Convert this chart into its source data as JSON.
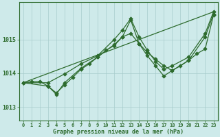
{
  "title": "Graphe pression niveau de la mer (hPa)",
  "bg_color": "#ceeaea",
  "grid_color": "#a8cccc",
  "line_color": "#2d6b2d",
  "xlim": [
    -0.5,
    23.5
  ],
  "ylim": [
    1012.6,
    1016.1
  ],
  "yticks": [
    1013,
    1014,
    1015
  ],
  "xticks": [
    0,
    1,
    2,
    3,
    4,
    5,
    6,
    7,
    8,
    9,
    10,
    11,
    12,
    13,
    14,
    15,
    16,
    17,
    18,
    19,
    20,
    21,
    22,
    23
  ],
  "line1_x": [
    0,
    1,
    2,
    3,
    4,
    5,
    6,
    7,
    8,
    9,
    10,
    11,
    12,
    13,
    14,
    15,
    16,
    17,
    18,
    19,
    20,
    21,
    22,
    23
  ],
  "line1_y": [
    1013.72,
    1013.75,
    1013.76,
    1013.62,
    1013.42,
    1013.65,
    1013.88,
    1014.12,
    1014.28,
    1014.48,
    1014.68,
    1014.82,
    1015.08,
    1015.18,
    1014.88,
    1014.62,
    1014.42,
    1014.22,
    1014.08,
    1014.22,
    1014.38,
    1014.58,
    1014.72,
    1015.72
  ],
  "line2_x": [
    0,
    3,
    4,
    5,
    7,
    9,
    11,
    12,
    13,
    14,
    15,
    16,
    17,
    18,
    20,
    22,
    23
  ],
  "line2_y": [
    1013.72,
    1013.62,
    1013.38,
    1013.72,
    1014.15,
    1014.48,
    1014.85,
    1015.08,
    1015.58,
    1014.88,
    1014.52,
    1014.22,
    1013.92,
    1014.08,
    1014.38,
    1015.08,
    1015.75
  ],
  "line3_x": [
    0,
    3,
    5,
    7,
    9,
    11,
    12,
    13,
    14,
    15,
    16,
    17,
    18,
    20,
    22,
    23
  ],
  "line3_y": [
    1013.72,
    1013.72,
    1013.98,
    1014.28,
    1014.52,
    1015.0,
    1015.28,
    1015.62,
    1015.08,
    1014.68,
    1014.35,
    1014.12,
    1014.22,
    1014.48,
    1015.18,
    1015.82
  ],
  "line4_x": [
    0,
    23
  ],
  "line4_y": [
    1013.72,
    1015.82
  ]
}
